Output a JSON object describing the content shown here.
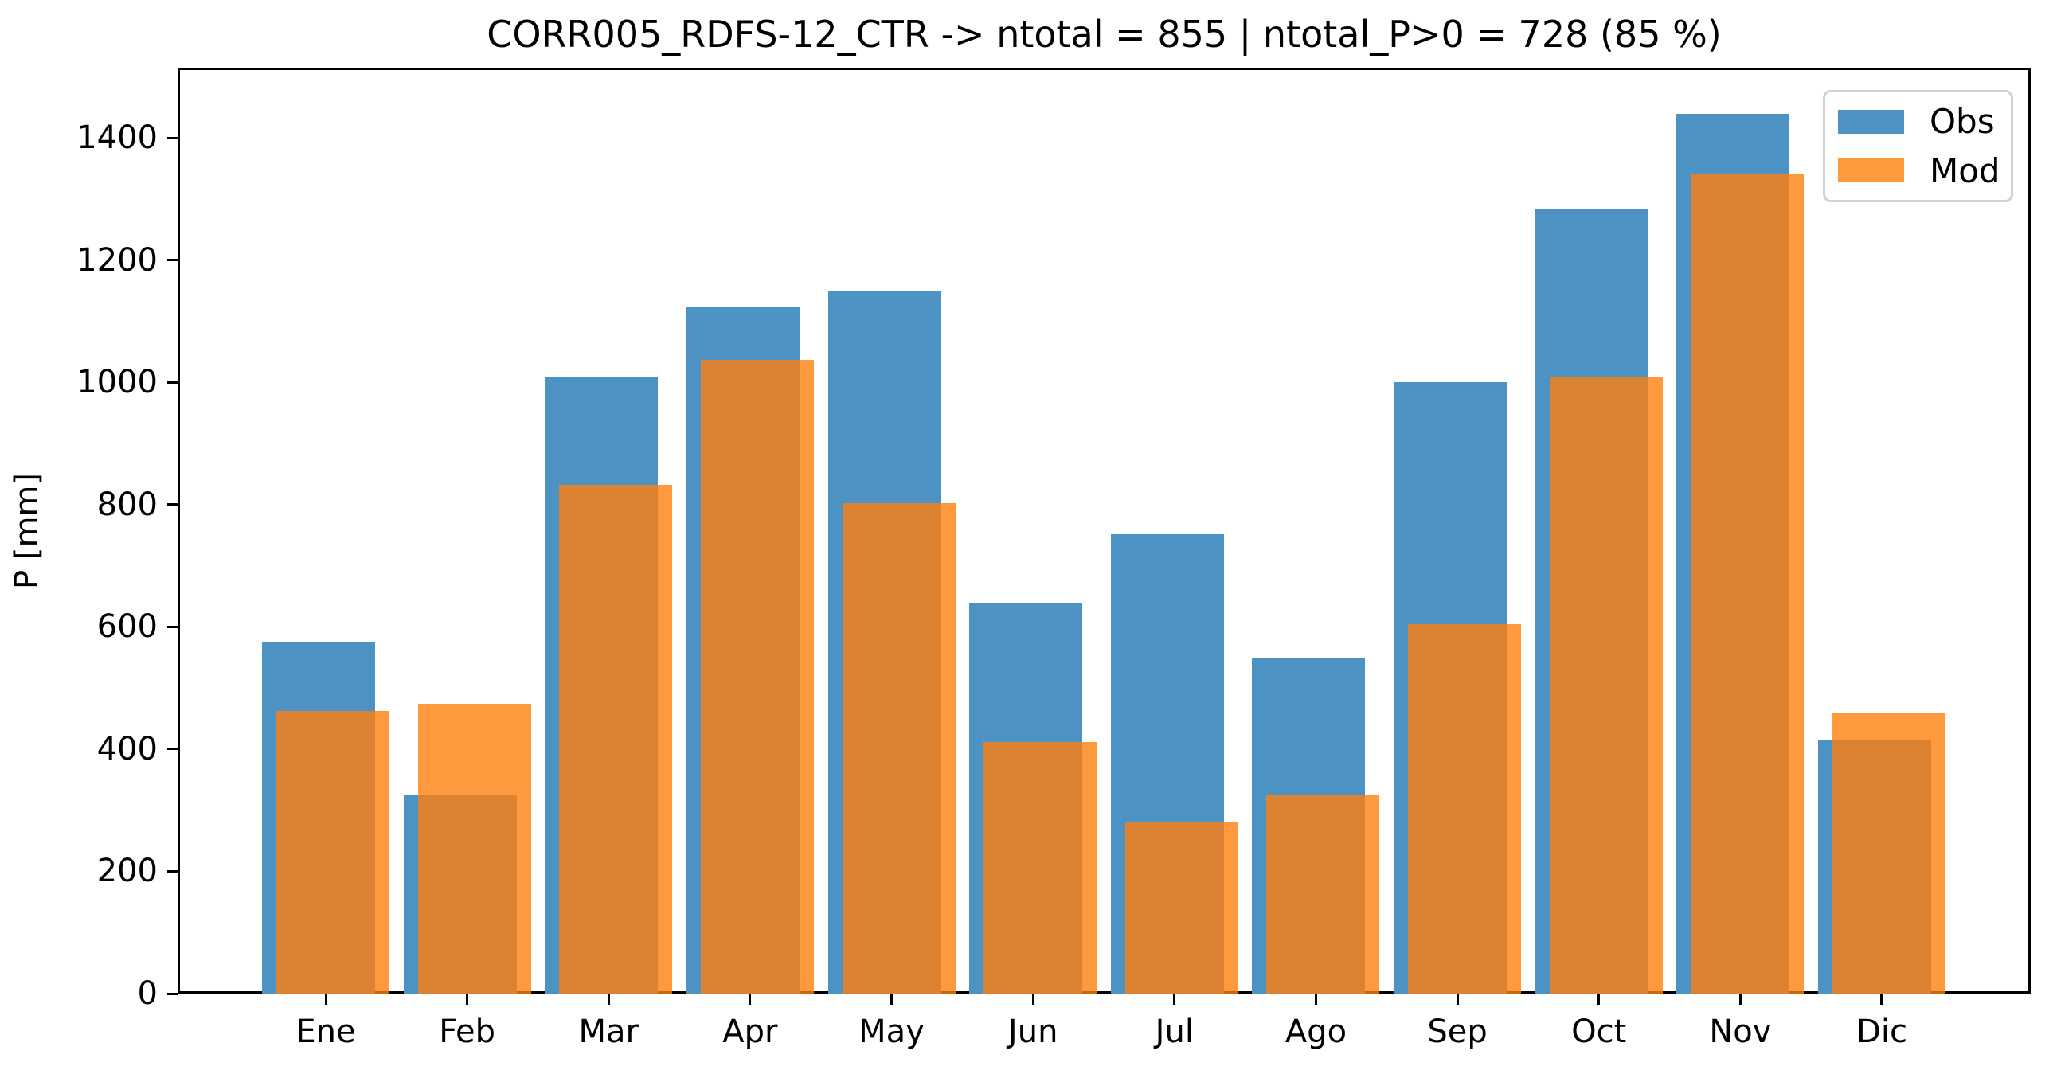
{
  "chart_data": {
    "type": "bar",
    "title": "CORR005_RDFS-12_CTR -> ntotal = 855 | ntotal_P>0 = 728 (85 %)",
    "ylabel": "P [mm]",
    "xlabel": "",
    "categories": [
      "Ene",
      "Feb",
      "Mar",
      "Apr",
      "May",
      "Jun",
      "Jul",
      "Ago",
      "Sep",
      "Oct",
      "Nov",
      "Dic"
    ],
    "series": [
      {
        "name": "Obs",
        "color": "#4C92C3",
        "values": [
          575,
          325,
          1008,
          1124,
          1150,
          638,
          752,
          550,
          1000,
          1284,
          1440,
          414
        ]
      },
      {
        "name": "Mod",
        "color": "#FF993E",
        "overlay_rgba": "rgba(255,127,14,0.8)",
        "values": [
          462,
          474,
          832,
          1037,
          802,
          411,
          280,
          324,
          604,
          1009,
          1340,
          459
        ]
      }
    ],
    "ylim": [
      0,
      1515
    ],
    "yticks": [
      0,
      200,
      400,
      600,
      800,
      1000,
      1200,
      1400
    ],
    "legend_position": "upper right",
    "grid": false,
    "bar_alpha": 0.8
  }
}
